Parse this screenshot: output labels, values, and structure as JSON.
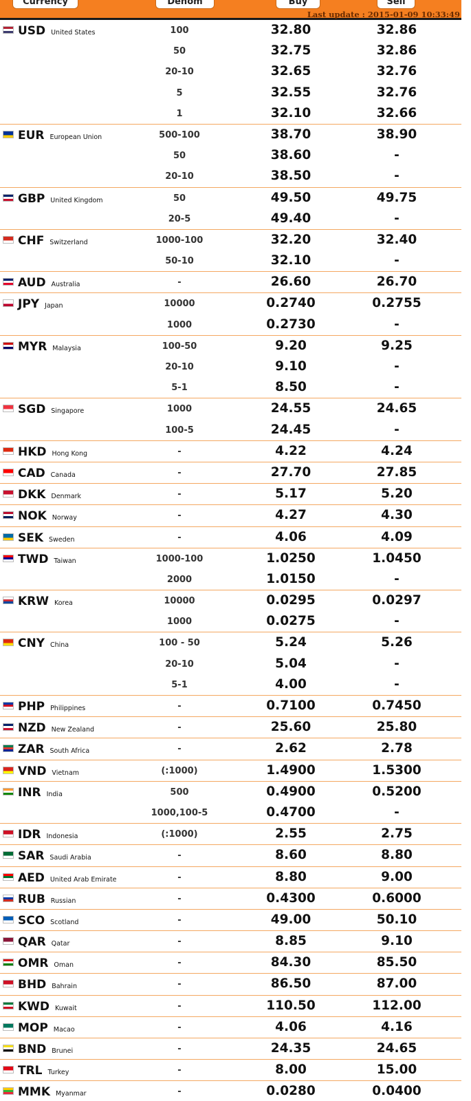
{
  "header": {
    "columns": {
      "currency": "Currency",
      "denom": "Denom",
      "buy": "Buy",
      "sell": "Sell"
    },
    "last_update": "Last update : 2015-01-09 10:33:49",
    "color": "#f57f20"
  },
  "rows": [
    {
      "code": "USD",
      "country": "United States",
      "flag_icon": "us-flag-icon",
      "colors": [
        "#b22234",
        "#ffffff",
        "#3c3b6e"
      ],
      "rates": [
        {
          "denom": "100",
          "buy": "32.80",
          "sell": "32.86"
        },
        {
          "denom": "50",
          "buy": "32.75",
          "sell": "32.86"
        },
        {
          "denom": "20-10",
          "buy": "32.65",
          "sell": "32.76"
        },
        {
          "denom": "5",
          "buy": "32.55",
          "sell": "32.76"
        },
        {
          "denom": "1",
          "buy": "32.10",
          "sell": "32.66"
        }
      ]
    },
    {
      "code": "EUR",
      "country": "European Union",
      "flag_icon": "eu-flag-icon",
      "colors": [
        "#003399",
        "#ffcc00"
      ],
      "rates": [
        {
          "denom": "500-100",
          "buy": "38.70",
          "sell": "38.90"
        },
        {
          "denom": "50",
          "buy": "38.60",
          "sell": "-"
        },
        {
          "denom": "20-10",
          "buy": "38.50",
          "sell": "-"
        }
      ]
    },
    {
      "code": "GBP",
      "country": "United Kingdom",
      "flag_icon": "gb-flag-icon",
      "colors": [
        "#012169",
        "#ffffff",
        "#c8102e"
      ],
      "rates": [
        {
          "denom": "50",
          "buy": "49.50",
          "sell": "49.75"
        },
        {
          "denom": "20-5",
          "buy": "49.40",
          "sell": "-"
        }
      ]
    },
    {
      "code": "CHF",
      "country": "Switzerland",
      "flag_icon": "ch-flag-icon",
      "colors": [
        "#d52b1e",
        "#ffffff"
      ],
      "rates": [
        {
          "denom": "1000-100",
          "buy": "32.20",
          "sell": "32.40"
        },
        {
          "denom": "50-10",
          "buy": "32.10",
          "sell": "-"
        }
      ]
    },
    {
      "code": "AUD",
      "country": "Australia",
      "flag_icon": "au-flag-icon",
      "colors": [
        "#012169",
        "#ffffff",
        "#e4002b"
      ],
      "rates": [
        {
          "denom": "-",
          "buy": "26.60",
          "sell": "26.70"
        }
      ]
    },
    {
      "code": "JPY",
      "country": "Japan",
      "flag_icon": "jp-flag-icon",
      "colors": [
        "#ffffff",
        "#bc002d"
      ],
      "rates": [
        {
          "denom": "10000",
          "buy": "0.2740",
          "sell": "0.2755"
        },
        {
          "denom": "1000",
          "buy": "0.2730",
          "sell": "-"
        }
      ]
    },
    {
      "code": "MYR",
      "country": "Malaysia",
      "flag_icon": "my-flag-icon",
      "colors": [
        "#cc0001",
        "#ffffff",
        "#010066",
        "#ffcc00"
      ],
      "rates": [
        {
          "denom": "100-50",
          "buy": "9.20",
          "sell": "9.25"
        },
        {
          "denom": "20-10",
          "buy": "9.10",
          "sell": "-"
        },
        {
          "denom": "5-1",
          "buy": "8.50",
          "sell": "-"
        }
      ]
    },
    {
      "code": "SGD",
      "country": "Singapore",
      "flag_icon": "sg-flag-icon",
      "colors": [
        "#ef3340",
        "#ffffff"
      ],
      "rates": [
        {
          "denom": "1000",
          "buy": "24.55",
          "sell": "24.65"
        },
        {
          "denom": "100-5",
          "buy": "24.45",
          "sell": "-"
        }
      ]
    },
    {
      "code": "HKD",
      "country": "Hong Kong",
      "flag_icon": "hk-flag-icon",
      "colors": [
        "#de2910",
        "#ffffff"
      ],
      "rates": [
        {
          "denom": "-",
          "buy": "4.22",
          "sell": "4.24"
        }
      ]
    },
    {
      "code": "CAD",
      "country": "Canada",
      "flag_icon": "ca-flag-icon",
      "colors": [
        "#ff0000",
        "#ffffff"
      ],
      "rates": [
        {
          "denom": "-",
          "buy": "27.70",
          "sell": "27.85"
        }
      ]
    },
    {
      "code": "DKK",
      "country": "Denmark",
      "flag_icon": "dk-flag-icon",
      "colors": [
        "#c8102e",
        "#ffffff"
      ],
      "rates": [
        {
          "denom": "-",
          "buy": "5.17",
          "sell": "5.20"
        }
      ]
    },
    {
      "code": "NOK",
      "country": "Norway",
      "flag_icon": "no-flag-icon",
      "colors": [
        "#ba0c2f",
        "#ffffff",
        "#00205b"
      ],
      "rates": [
        {
          "denom": "-",
          "buy": "4.27",
          "sell": "4.30"
        }
      ]
    },
    {
      "code": "SEK",
      "country": "Sweden",
      "flag_icon": "se-flag-icon",
      "colors": [
        "#006aa7",
        "#fecc00"
      ],
      "rates": [
        {
          "denom": "-",
          "buy": "4.06",
          "sell": "4.09"
        }
      ]
    },
    {
      "code": "TWD",
      "country": "Taiwan",
      "flag_icon": "tw-flag-icon",
      "colors": [
        "#fe0000",
        "#000095",
        "#ffffff"
      ],
      "rates": [
        {
          "denom": "1000-100",
          "buy": "1.0250",
          "sell": "1.0450"
        },
        {
          "denom": "2000",
          "buy": "1.0150",
          "sell": "-"
        }
      ]
    },
    {
      "code": "KRW",
      "country": "Korea",
      "flag_icon": "kr-flag-icon",
      "colors": [
        "#ffffff",
        "#cd2e3a",
        "#0047a0"
      ],
      "rates": [
        {
          "denom": "10000",
          "buy": "0.0295",
          "sell": "0.0297"
        },
        {
          "denom": "1000",
          "buy": "0.0275",
          "sell": "-"
        }
      ]
    },
    {
      "code": "CNY",
      "country": "China",
      "flag_icon": "cn-flag-icon",
      "colors": [
        "#de2910",
        "#ffde00"
      ],
      "rates": [
        {
          "denom": "100 - 50",
          "buy": "5.24",
          "sell": "5.26"
        },
        {
          "denom": "20-10",
          "buy": "5.04",
          "sell": "-"
        },
        {
          "denom": "5-1",
          "buy": "4.00",
          "sell": "-"
        }
      ]
    },
    {
      "code": "PHP",
      "country": "Philippines",
      "flag_icon": "ph-flag-icon",
      "colors": [
        "#0038a8",
        "#ce1126",
        "#ffffff"
      ],
      "rates": [
        {
          "denom": "-",
          "buy": "0.7100",
          "sell": "0.7450"
        }
      ]
    },
    {
      "code": "NZD",
      "country": "New Zealand",
      "flag_icon": "nz-flag-icon",
      "colors": [
        "#012169",
        "#ffffff",
        "#c8102e"
      ],
      "rates": [
        {
          "denom": "-",
          "buy": "25.60",
          "sell": "25.80"
        }
      ]
    },
    {
      "code": "ZAR",
      "country": "South Africa",
      "flag_icon": "za-flag-icon",
      "colors": [
        "#007a4d",
        "#de3831",
        "#002395",
        "#ffb612"
      ],
      "rates": [
        {
          "denom": "-",
          "buy": "2.62",
          "sell": "2.78"
        }
      ]
    },
    {
      "code": "VND",
      "country": "Vietnam",
      "flag_icon": "vn-flag-icon",
      "colors": [
        "#da251d",
        "#ffff00"
      ],
      "rates": [
        {
          "denom": "(:1000)",
          "buy": "1.4900",
          "sell": "1.5300"
        }
      ]
    },
    {
      "code": "INR",
      "country": "India",
      "flag_icon": "in-flag-icon",
      "colors": [
        "#ff9933",
        "#ffffff",
        "#138808"
      ],
      "rates": [
        {
          "denom": "500",
          "buy": "0.4900",
          "sell": "0.5200"
        },
        {
          "denom": "1000,100-5",
          "buy": "0.4700",
          "sell": "-"
        }
      ]
    },
    {
      "code": "IDR",
      "country": "Indonesia",
      "flag_icon": "id-flag-icon",
      "colors": [
        "#ce1126",
        "#ffffff"
      ],
      "rates": [
        {
          "denom": "(:1000)",
          "buy": "2.55",
          "sell": "2.75"
        }
      ]
    },
    {
      "code": "SAR",
      "country": "Saudi Arabia",
      "flag_icon": "sa-flag-icon",
      "colors": [
        "#006c35",
        "#ffffff"
      ],
      "rates": [
        {
          "denom": "-",
          "buy": "8.60",
          "sell": "8.80"
        }
      ]
    },
    {
      "code": "AED",
      "country": "United Arab Emirate",
      "flag_icon": "ae-flag-icon",
      "colors": [
        "#ff0000",
        "#00732f",
        "#ffffff",
        "#000000"
      ],
      "rates": [
        {
          "denom": "-",
          "buy": "8.80",
          "sell": "9.00"
        }
      ]
    },
    {
      "code": "RUB",
      "country": "Russian",
      "flag_icon": "ru-flag-icon",
      "colors": [
        "#ffffff",
        "#0039a6",
        "#d52b1e"
      ],
      "rates": [
        {
          "denom": "-",
          "buy": "0.4300",
          "sell": "0.6000"
        }
      ]
    },
    {
      "code": "SCO",
      "country": "Scotland",
      "flag_icon": "sco-flag-icon",
      "colors": [
        "#005eb8",
        "#ffffff"
      ],
      "rates": [
        {
          "denom": "-",
          "buy": "49.00",
          "sell": "50.10"
        }
      ]
    },
    {
      "code": "QAR",
      "country": "Qatar",
      "flag_icon": "qa-flag-icon",
      "colors": [
        "#8a1538",
        "#ffffff"
      ],
      "rates": [
        {
          "denom": "-",
          "buy": "8.85",
          "sell": "9.10"
        }
      ]
    },
    {
      "code": "OMR",
      "country": "Oman",
      "flag_icon": "om-flag-icon",
      "colors": [
        "#db161b",
        "#ffffff",
        "#008000"
      ],
      "rates": [
        {
          "denom": "-",
          "buy": "84.30",
          "sell": "85.50"
        }
      ]
    },
    {
      "code": "BHD",
      "country": "Bahrain",
      "flag_icon": "bh-flag-icon",
      "colors": [
        "#ce1126",
        "#ffffff"
      ],
      "rates": [
        {
          "denom": "-",
          "buy": "86.50",
          "sell": "87.00"
        }
      ]
    },
    {
      "code": "KWD",
      "country": "Kuwait",
      "flag_icon": "kw-flag-icon",
      "colors": [
        "#007a3d",
        "#ffffff",
        "#ce1126",
        "#000000"
      ],
      "rates": [
        {
          "denom": "-",
          "buy": "110.50",
          "sell": "112.00"
        }
      ]
    },
    {
      "code": "MOP",
      "country": "Macao",
      "flag_icon": "mo-flag-icon",
      "colors": [
        "#00785e",
        "#ffffff"
      ],
      "rates": [
        {
          "denom": "-",
          "buy": "4.06",
          "sell": "4.16"
        }
      ]
    },
    {
      "code": "BND",
      "country": "Brunei",
      "flag_icon": "bn-flag-icon",
      "colors": [
        "#f7e017",
        "#ffffff",
        "#000000"
      ],
      "rates": [
        {
          "denom": "-",
          "buy": "24.35",
          "sell": "24.65"
        }
      ]
    },
    {
      "code": "TRL",
      "country": "Turkey",
      "flag_icon": "tr-flag-icon",
      "colors": [
        "#e30a17",
        "#ffffff"
      ],
      "rates": [
        {
          "denom": "-",
          "buy": "8.00",
          "sell": "15.00"
        }
      ]
    },
    {
      "code": "MMK",
      "country": "Myanmar",
      "flag_icon": "mm-flag-icon",
      "colors": [
        "#fecb00",
        "#34b233",
        "#ea2839"
      ],
      "rates": [
        {
          "denom": "-",
          "buy": "0.0280",
          "sell": "0.0400"
        }
      ]
    }
  ]
}
